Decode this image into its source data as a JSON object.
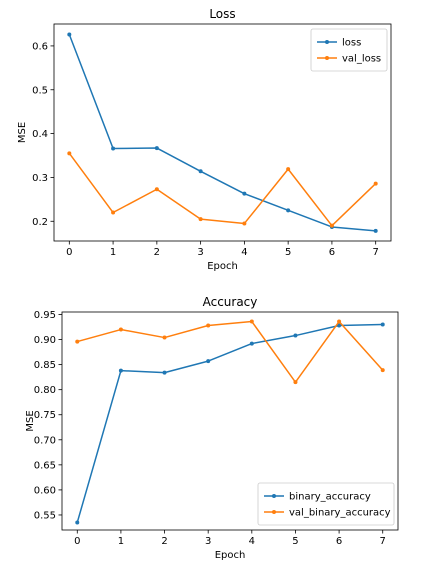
{
  "chart_data": [
    {
      "type": "line",
      "title": "Loss",
      "xlabel": "Epoch",
      "ylabel": "MSE",
      "x": [
        0,
        1,
        2,
        3,
        4,
        5,
        6,
        7
      ],
      "xlim": [
        -0.35,
        7.35
      ],
      "ylim": [
        0.155,
        0.65
      ],
      "xticks": [
        0,
        1,
        2,
        3,
        4,
        5,
        6,
        7
      ],
      "yticks": [
        0.2,
        0.3,
        0.4,
        0.5,
        0.6
      ],
      "ytick_labels": [
        "0.2",
        "0.3",
        "0.4",
        "0.5",
        "0.6"
      ],
      "grid": false,
      "legend": "top-right",
      "series": [
        {
          "name": "loss",
          "color": "#1f77b4",
          "values": [
            0.626,
            0.366,
            0.367,
            0.314,
            0.263,
            0.225,
            0.187,
            0.178
          ]
        },
        {
          "name": "val_loss",
          "color": "#ff7f0e",
          "values": [
            0.355,
            0.22,
            0.273,
            0.205,
            0.195,
            0.319,
            0.19,
            0.286
          ]
        }
      ]
    },
    {
      "type": "line",
      "title": "Accuracy",
      "xlabel": "Epoch",
      "ylabel": "MSE",
      "x": [
        0,
        1,
        2,
        3,
        4,
        5,
        6,
        7
      ],
      "xlim": [
        -0.35,
        7.35
      ],
      "ylim": [
        0.52,
        0.955
      ],
      "xticks": [
        0,
        1,
        2,
        3,
        4,
        5,
        6,
        7
      ],
      "yticks": [
        0.55,
        0.6,
        0.65,
        0.7,
        0.75,
        0.8,
        0.85,
        0.9,
        0.95
      ],
      "ytick_labels": [
        "0.55",
        "0.60",
        "0.65",
        "0.70",
        "0.75",
        "0.80",
        "0.85",
        "0.90",
        "0.95"
      ],
      "grid": false,
      "legend": "bottom-right",
      "series": [
        {
          "name": "binary_accuracy",
          "color": "#1f77b4",
          "values": [
            0.535,
            0.838,
            0.834,
            0.857,
            0.892,
            0.908,
            0.928,
            0.93
          ]
        },
        {
          "name": "val_binary_accuracy",
          "color": "#ff7f0e",
          "values": [
            0.896,
            0.92,
            0.904,
            0.928,
            0.936,
            0.815,
            0.936,
            0.839
          ]
        }
      ]
    }
  ]
}
